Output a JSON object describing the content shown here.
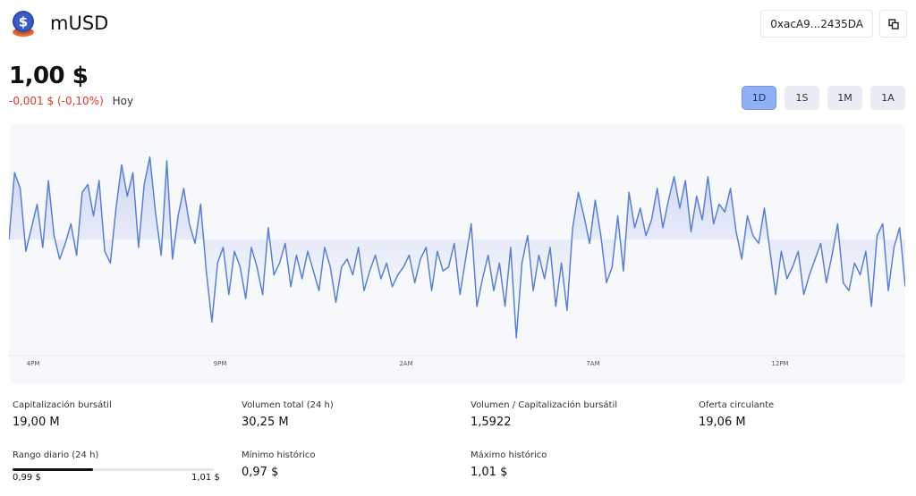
{
  "header": {
    "title": "mUSD",
    "address": "0xacA9...2435DA",
    "logo_icon": "dollar-coin-icon",
    "copy_icon": "copy-icon"
  },
  "price": {
    "value": "1,00 $",
    "change": "-0,001 $ (-0,10%)",
    "period": "Hoy"
  },
  "tabs": [
    {
      "label": "1D",
      "active": true
    },
    {
      "label": "1S",
      "active": false
    },
    {
      "label": "1M",
      "active": false
    },
    {
      "label": "1A",
      "active": false
    }
  ],
  "stats": {
    "market_cap": {
      "label": "Capitalización bursátil",
      "value": "19,00 M"
    },
    "volume": {
      "label": "Volumen total (24 h)",
      "value": "30,25 M"
    },
    "vol_mcap": {
      "label": "Volumen / Capitalización bursátil",
      "value": "1,5922"
    },
    "supply": {
      "label": "Oferta circulante",
      "value": "19,06 M"
    },
    "daily_range": {
      "label": "Rango diario (24 h)",
      "min": "0,99 $",
      "max": "1,01 $",
      "fill_percent": 40
    },
    "ath_low": {
      "label": "Mínimo histórico",
      "value": "0,97 $"
    },
    "ath_high": {
      "label": "Máximo histórico",
      "value": "1,01 $"
    }
  },
  "colors": {
    "line": "#5b7fd0",
    "negative": "#d93a2b",
    "tab_active": "#8fb0f5"
  },
  "chart_data": {
    "type": "area",
    "xlabel": "",
    "ylabel": "",
    "x_ticks": [
      "4PM",
      "9PM",
      "2AM",
      "7AM",
      "12PM"
    ],
    "ylim": [
      0.9975,
      1.0025
    ],
    "grid": false,
    "values": [
      1.0,
      1.0017,
      1.0013,
      0.9997,
      1.0003,
      1.0009,
      0.9998,
      1.0015,
      1.0001,
      0.9995,
      0.9999,
      1.0004,
      0.9996,
      1.0012,
      1.0014,
      1.0006,
      1.0015,
      0.9997,
      0.9994,
      1.0008,
      1.0019,
      1.0011,
      1.0017,
      0.9998,
      1.0014,
      1.0021,
      1.0007,
      0.9996,
      1.002,
      0.9995,
      1.0006,
      1.0013,
      1.0004,
      0.9999,
      1.0009,
      0.9992,
      0.9979,
      0.9994,
      0.9998,
      0.9986,
      0.9997,
      0.9993,
      0.9985,
      0.9998,
      0.9993,
      0.9986,
      1.0003,
      0.9991,
      0.9994,
      0.9999,
      0.9988,
      0.9996,
      0.999,
      0.9997,
      0.9992,
      0.9987,
      0.9998,
      0.9993,
      0.9984,
      0.9993,
      0.9995,
      0.9991,
      0.9998,
      0.9987,
      0.9992,
      0.9996,
      0.999,
      0.9994,
      0.9988,
      0.9991,
      0.9993,
      0.9996,
      0.9989,
      0.9995,
      0.9998,
      0.9987,
      0.9997,
      0.9992,
      0.9993,
      0.9999,
      0.9986,
      0.9995,
      1.0004,
      0.9983,
      0.999,
      0.9996,
      0.9987,
      0.9994,
      0.9983,
      0.9998,
      0.9975,
      0.9994,
      1.0001,
      0.9987,
      0.9996,
      0.999,
      0.9998,
      0.9983,
      0.9994,
      0.9982,
      1.0003,
      1.0012,
      1.0006,
      0.9999,
      1.001,
      1.0001,
      0.9989,
      0.9993,
      1.0006,
      0.9992,
      1.0012,
      1.0003,
      1.0008,
      1.0001,
      1.0005,
      1.0013,
      1.0003,
      1.001,
      1.0016,
      1.0008,
      1.0015,
      1.0002,
      1.0011,
      1.0005,
      1.0016,
      1.0004,
      1.0009,
      1.0007,
      1.0013,
      1.0002,
      0.9995,
      1.0006,
      1.0001,
      0.9999,
      1.0008,
      0.9997,
      0.9986,
      0.9997,
      0.999,
      0.9993,
      0.9997,
      0.9986,
      0.9991,
      0.9995,
      0.9999,
      0.9989,
      0.9996,
      1.0004,
      0.9989,
      0.9987,
      0.9994,
      0.9991,
      0.9997,
      0.9983,
      1.0001,
      1.0004,
      0.9987,
      0.9998,
      1.0003,
      0.9988
    ]
  }
}
